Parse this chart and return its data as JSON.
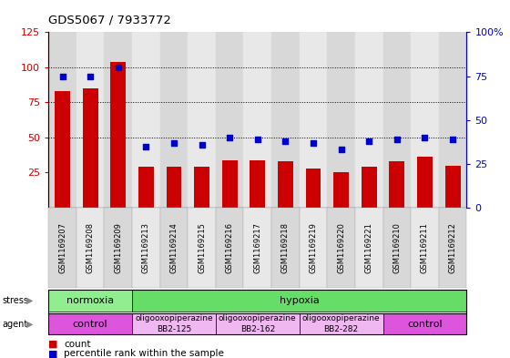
{
  "title": "GDS5067 / 7933772",
  "samples": [
    "GSM1169207",
    "GSM1169208",
    "GSM1169209",
    "GSM1169213",
    "GSM1169214",
    "GSM1169215",
    "GSM1169216",
    "GSM1169217",
    "GSM1169218",
    "GSM1169219",
    "GSM1169220",
    "GSM1169221",
    "GSM1169210",
    "GSM1169211",
    "GSM1169212"
  ],
  "counts": [
    83,
    85,
    104,
    29,
    29,
    29,
    34,
    34,
    33,
    28,
    25,
    29,
    33,
    36,
    30
  ],
  "percentile_ranks": [
    75,
    75,
    80,
    35,
    37,
    36,
    40,
    39,
    38,
    37,
    33,
    38,
    39,
    40,
    39
  ],
  "bar_color": "#cc0000",
  "dot_color": "#0000cc",
  "ylim_left": [
    0,
    125
  ],
  "ylim_right": [
    0,
    100
  ],
  "yticks_left": [
    25,
    50,
    75,
    100,
    125
  ],
  "yticks_right": [
    0,
    25,
    50,
    75,
    100
  ],
  "ytick_labels_left": [
    "25",
    "50",
    "75",
    "100",
    "125"
  ],
  "ytick_labels_right": [
    "0",
    "25",
    "50",
    "75",
    "100%"
  ],
  "hlines": [
    50,
    75,
    100
  ],
  "col_colors": [
    "#d8d8d8",
    "#e8e8e8"
  ],
  "stress_groups": [
    {
      "label": "normoxia",
      "start": 0,
      "end": 3,
      "color": "#90ee90"
    },
    {
      "label": "hypoxia",
      "start": 3,
      "end": 15,
      "color": "#66dd66"
    }
  ],
  "agent_groups": [
    {
      "label": "control",
      "start": 0,
      "end": 3,
      "color": "#dd55dd"
    },
    {
      "label": "oligooxopiperazine\nBB2-125",
      "start": 3,
      "end": 6,
      "color": "#f0b8f0"
    },
    {
      "label": "oligooxopiperazine\nBB2-162",
      "start": 6,
      "end": 9,
      "color": "#f0b8f0"
    },
    {
      "label": "oligooxopiperazine\nBB2-282",
      "start": 9,
      "end": 12,
      "color": "#f0b8f0"
    },
    {
      "label": "control",
      "start": 12,
      "end": 15,
      "color": "#dd55dd"
    }
  ],
  "tick_color_left": "#cc0000",
  "tick_color_right": "#0000cc",
  "bg_color": "#ffffff"
}
